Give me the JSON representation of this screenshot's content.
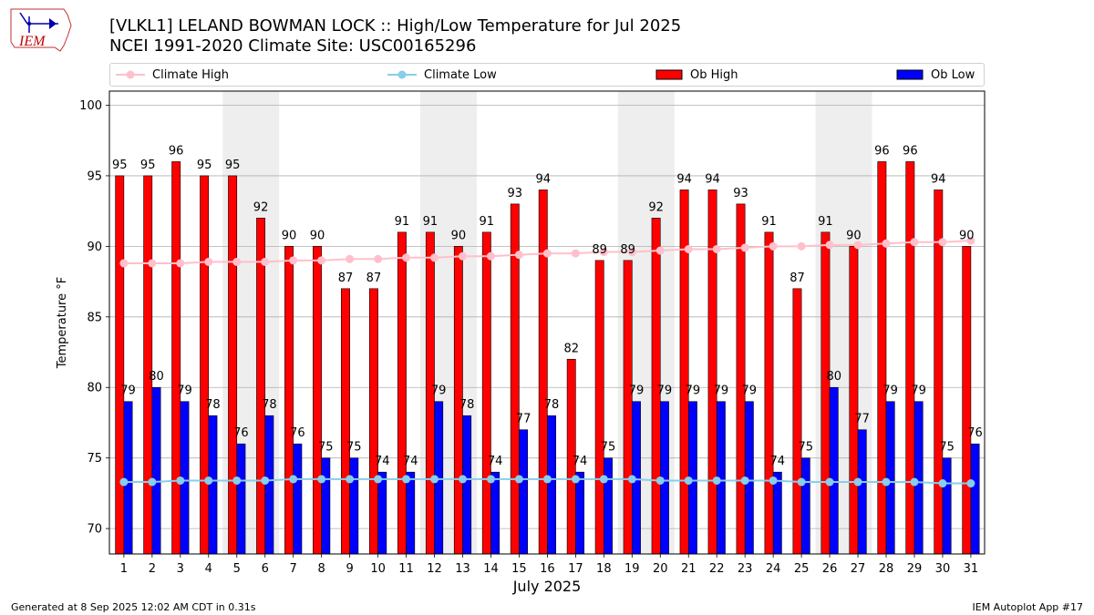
{
  "header": {
    "title_line1": "[VLKL1] LELAND BOWMAN LOCK :: High/Low Temperature for Jul 2025",
    "title_line2": "NCEI 1991-2020 Climate Site: USC00165296",
    "logo_text": "IEM"
  },
  "legend": {
    "climate_high": "Climate High",
    "climate_low": "Climate Low",
    "ob_high": "Ob High",
    "ob_low": "Ob Low"
  },
  "footer": {
    "generated": "Generated at 8 Sep 2025 12:02 AM CDT in 0.31s",
    "app": "IEM Autoplot App #17"
  },
  "colors": {
    "ob_high": "#ff0000",
    "ob_low": "#0000ff",
    "climate_high": "#ffc0cb",
    "climate_low": "#87ceeb",
    "weekend_shade": "#eeeeee",
    "grid": "#b0b0b0"
  },
  "chart_data": {
    "type": "bar",
    "title": "[VLKL1] LELAND BOWMAN LOCK :: High/Low Temperature for Jul 2025",
    "xlabel": "July 2025",
    "ylabel": "Temperature °F",
    "ylim": [
      68.2,
      101
    ],
    "yticks": [
      70,
      75,
      80,
      85,
      90,
      95,
      100
    ],
    "grid": true,
    "legend_position": "top",
    "categories": [
      "1",
      "2",
      "3",
      "4",
      "5",
      "6",
      "7",
      "8",
      "9",
      "10",
      "11",
      "12",
      "13",
      "14",
      "15",
      "16",
      "17",
      "18",
      "19",
      "20",
      "21",
      "22",
      "23",
      "24",
      "25",
      "26",
      "27",
      "28",
      "29",
      "30",
      "31"
    ],
    "weekend_spans": [
      [
        5,
        6
      ],
      [
        12,
        13
      ],
      [
        19,
        20
      ],
      [
        26,
        27
      ]
    ],
    "series": [
      {
        "name": "Ob High",
        "kind": "bar",
        "values": [
          95,
          95,
          96,
          95,
          95,
          92,
          90,
          90,
          87,
          87,
          91,
          91,
          90,
          91,
          93,
          94,
          82,
          89,
          89,
          92,
          94,
          94,
          93,
          91,
          87,
          91,
          90,
          96,
          96,
          94,
          90
        ]
      },
      {
        "name": "Ob Low",
        "kind": "bar",
        "values": [
          79,
          80,
          79,
          78,
          76,
          78,
          76,
          75,
          75,
          74,
          74,
          79,
          78,
          74,
          77,
          78,
          74,
          75,
          79,
          79,
          79,
          79,
          79,
          74,
          75,
          80,
          77,
          79,
          79,
          75,
          76
        ]
      },
      {
        "name": "Climate High",
        "kind": "line",
        "values": [
          88.8,
          88.8,
          88.8,
          88.9,
          88.9,
          88.9,
          89.0,
          89.0,
          89.1,
          89.1,
          89.2,
          89.2,
          89.3,
          89.3,
          89.4,
          89.5,
          89.5,
          89.6,
          89.6,
          89.7,
          89.8,
          89.8,
          89.9,
          90.0,
          90.0,
          90.1,
          90.1,
          90.2,
          90.3,
          90.3,
          90.4
        ]
      },
      {
        "name": "Climate Low",
        "kind": "line",
        "values": [
          73.3,
          73.3,
          73.4,
          73.4,
          73.4,
          73.4,
          73.5,
          73.5,
          73.5,
          73.5,
          73.5,
          73.5,
          73.5,
          73.5,
          73.5,
          73.5,
          73.5,
          73.5,
          73.5,
          73.4,
          73.4,
          73.4,
          73.4,
          73.4,
          73.3,
          73.3,
          73.3,
          73.3,
          73.3,
          73.2,
          73.2
        ]
      }
    ]
  }
}
